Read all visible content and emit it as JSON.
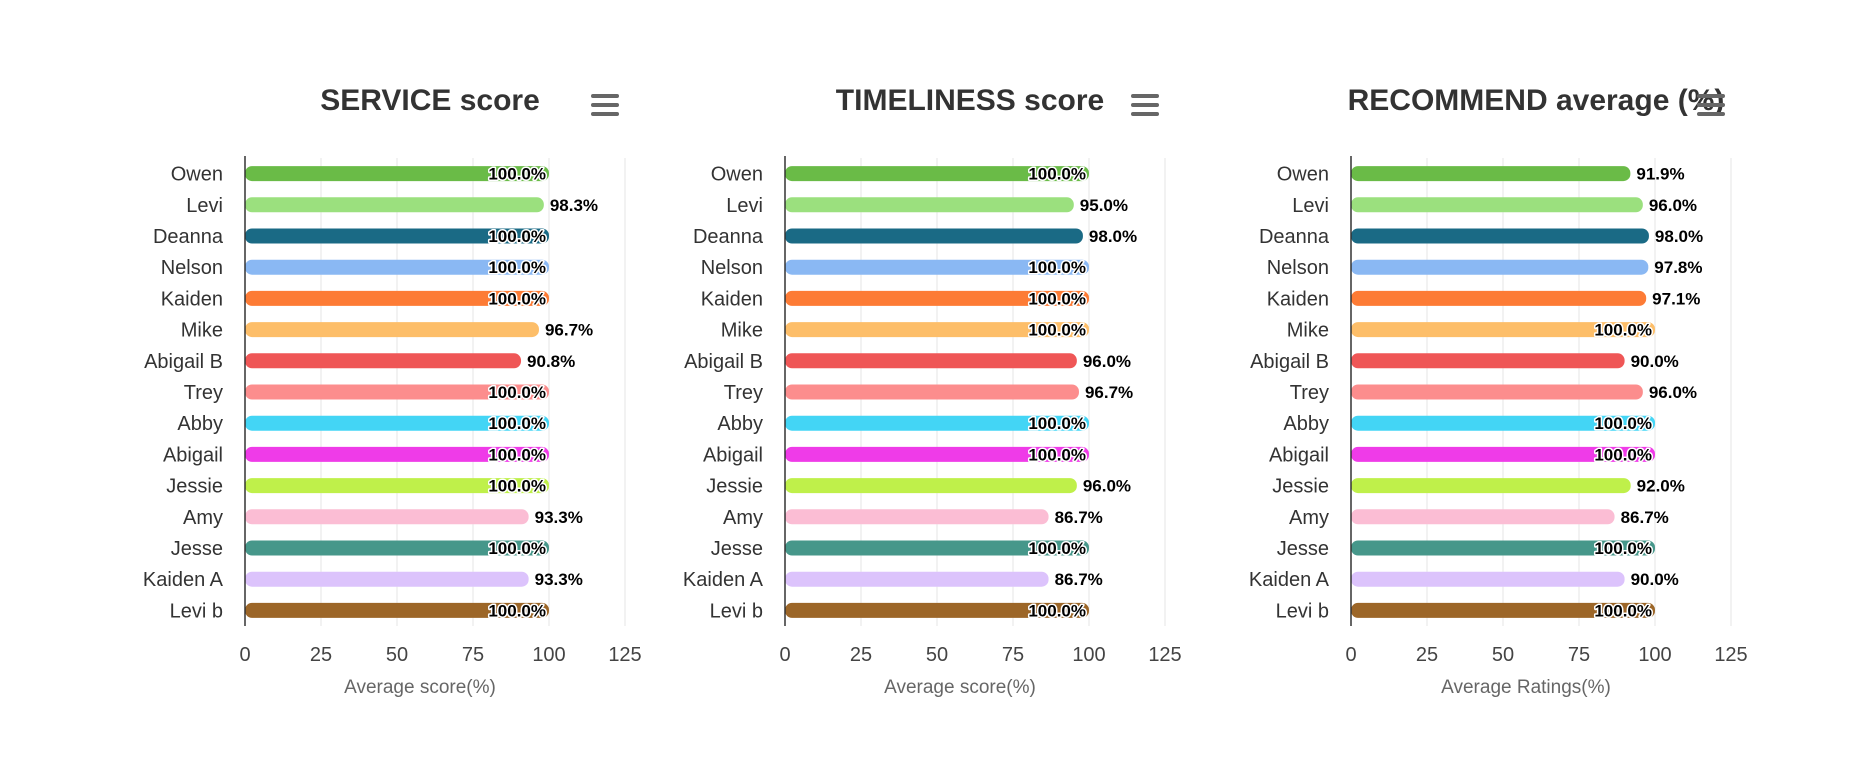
{
  "chart_data": [
    {
      "type": "bar",
      "orientation": "horizontal",
      "title": "SERVICE score",
      "xlabel": "Average score(%)",
      "ylabel": "",
      "xlim": [
        0,
        125
      ],
      "ticks": [
        0,
        25,
        50,
        75,
        100,
        125
      ],
      "grid": true,
      "categories": [
        "Owen",
        "Levi",
        "Deanna",
        "Nelson",
        "Kaiden",
        "Mike",
        "Abigail B",
        "Trey",
        "Abby",
        "Abigail",
        "Jessie",
        "Amy",
        "Jesse",
        "Kaiden A",
        "Levi b"
      ],
      "values": [
        100.0,
        98.3,
        100.0,
        100.0,
        100.0,
        96.7,
        90.8,
        100.0,
        100.0,
        100.0,
        100.0,
        93.3,
        100.0,
        93.3,
        100.0
      ],
      "labels": [
        "100.0%",
        "98.3%",
        "100.0%",
        "100.0%",
        "100.0%",
        "96.7%",
        "90.8%",
        "100.0%",
        "100.0%",
        "100.0%",
        "100.0%",
        "93.3%",
        "100.0%",
        "93.3%",
        "100.0%"
      ]
    },
    {
      "type": "bar",
      "orientation": "horizontal",
      "title": "TIMELINESS score",
      "xlabel": "Average score(%)",
      "ylabel": "",
      "xlim": [
        0,
        125
      ],
      "ticks": [
        0,
        25,
        50,
        75,
        100,
        125
      ],
      "grid": true,
      "categories": [
        "Owen",
        "Levi",
        "Deanna",
        "Nelson",
        "Kaiden",
        "Mike",
        "Abigail B",
        "Trey",
        "Abby",
        "Abigail",
        "Jessie",
        "Amy",
        "Jesse",
        "Kaiden A",
        "Levi b"
      ],
      "values": [
        100.0,
        95.0,
        98.0,
        100.0,
        100.0,
        100.0,
        96.0,
        96.7,
        100.0,
        100.0,
        96.0,
        86.7,
        100.0,
        86.7,
        100.0
      ],
      "labels": [
        "100.0%",
        "95.0%",
        "98.0%",
        "100.0%",
        "100.0%",
        "100.0%",
        "96.0%",
        "96.7%",
        "100.0%",
        "100.0%",
        "96.0%",
        "86.7%",
        "100.0%",
        "86.7%",
        "100.0%"
      ]
    },
    {
      "type": "bar",
      "orientation": "horizontal",
      "title": "RECOMMEND average (%)",
      "xlabel": "Average Ratings(%)",
      "ylabel": "",
      "xlim": [
        0,
        125
      ],
      "ticks": [
        0,
        25,
        50,
        75,
        100,
        125
      ],
      "grid": true,
      "categories": [
        "Owen",
        "Levi",
        "Deanna",
        "Nelson",
        "Kaiden",
        "Mike",
        "Abigail B",
        "Trey",
        "Abby",
        "Abigail",
        "Jessie",
        "Amy",
        "Jesse",
        "Kaiden A",
        "Levi b"
      ],
      "values": [
        91.9,
        96.0,
        98.0,
        97.8,
        97.1,
        100.0,
        90.0,
        96.0,
        100.0,
        100.0,
        92.0,
        86.7,
        100.0,
        90.0,
        100.0
      ],
      "labels": [
        "91.9%",
        "96.0%",
        "98.0%",
        "97.8%",
        "97.1%",
        "100.0%",
        "90.0%",
        "96.0%",
        "100.0%",
        "100.0%",
        "92.0%",
        "86.7%",
        "100.0%",
        "90.0%",
        "100.0%"
      ]
    }
  ],
  "colors": [
    "#6abb47",
    "#9be07e",
    "#1a6a85",
    "#8ab8f3",
    "#fd7b35",
    "#fdbe69",
    "#ef5656",
    "#fc8d8d",
    "#43d5f5",
    "#ef3be8",
    "#bff04a",
    "#fbbdd4",
    "#46978a",
    "#dcc3fc",
    "#9c6628"
  ],
  "menu_icon": "hamburger-menu-icon"
}
